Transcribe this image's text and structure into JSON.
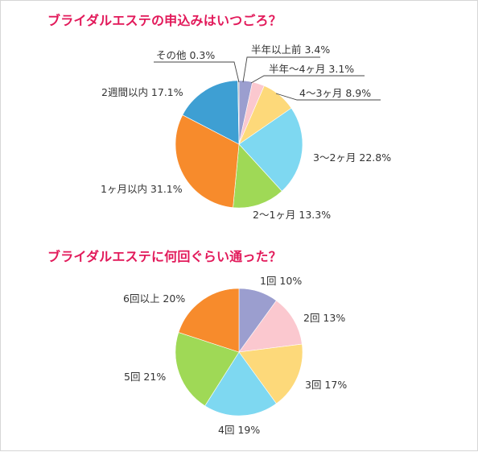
{
  "chart_data": [
    {
      "type": "pie",
      "title": "ブライダルエステの申込みはいつごろ？",
      "slices": [
        {
          "label": "半年以上前",
          "value": 3.4,
          "display": "3.4%",
          "color": "#9b9ecf"
        },
        {
          "label": "半年〜4ヶ月",
          "value": 3.1,
          "display": "3.1%",
          "color": "#fbc8cf"
        },
        {
          "label": "4〜3ヶ月",
          "value": 8.9,
          "display": "8.9%",
          "color": "#fdd97a"
        },
        {
          "label": "3〜2ヶ月",
          "value": 22.8,
          "display": "22.8%",
          "color": "#7ed8f1"
        },
        {
          "label": "2〜1ヶ月",
          "value": 13.3,
          "display": "13.3%",
          "color": "#9fd956"
        },
        {
          "label": "1ヶ月以内",
          "value": 31.1,
          "display": "31.1%",
          "color": "#f78b2c"
        },
        {
          "label": "2週間以内",
          "value": 17.1,
          "display": "17.1%",
          "color": "#3e9fd3"
        },
        {
          "label": "その他",
          "value": 0.3,
          "display": "0.3%",
          "color": "#b9b9b9"
        }
      ]
    },
    {
      "type": "pie",
      "title": "ブライダルエステに何回ぐらい通った？",
      "slices": [
        {
          "label": "1回",
          "value": 10,
          "display": "10%",
          "color": "#9b9ecf"
        },
        {
          "label": "2回",
          "value": 13,
          "display": "13%",
          "color": "#fbc8cf"
        },
        {
          "label": "3回",
          "value": 17,
          "display": "17%",
          "color": "#fdd97a"
        },
        {
          "label": "4回",
          "value": 19,
          "display": "19%",
          "color": "#7ed8f1"
        },
        {
          "label": "5回",
          "value": 21,
          "display": "21%",
          "color": "#9fd956"
        },
        {
          "label": "6回以上",
          "value": 20,
          "display": "20%",
          "color": "#f78b2c"
        }
      ]
    }
  ]
}
